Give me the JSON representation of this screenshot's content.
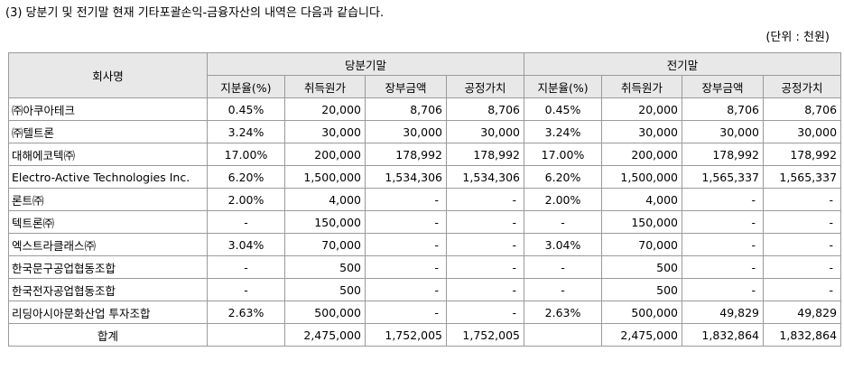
{
  "title": "(3) 당분기 및 전기말 현재 기타포괄손익-금융자산의 내역은 다음과 같습니다.",
  "unit": "(단위 : 천원)",
  "headers": {
    "company": "회사명",
    "current": "당분기말",
    "prior": "전기말",
    "cols": [
      "지분율(%)",
      "취득원가",
      "장부금액",
      "공정가치",
      "지분율(%)",
      "취득원가",
      "장부금액",
      "공정가치"
    ]
  },
  "rows": [
    {
      "name": "㈜아쿠아테크",
      "cells": [
        "0.45%",
        "20,000",
        "8,706",
        "8,706",
        "0.45%",
        "20,000",
        "8,706",
        "8,706"
      ]
    },
    {
      "name": "㈜텔트론",
      "cells": [
        "3.24%",
        "30,000",
        "30,000",
        "30,000",
        "3.24%",
        "30,000",
        "30,000",
        "30,000"
      ]
    },
    {
      "name": "대해에코텍㈜",
      "cells": [
        "17.00%",
        "200,000",
        "178,992",
        "178,992",
        "17.00%",
        "200,000",
        "178,992",
        "178,992"
      ]
    },
    {
      "name": "Electro-Active Technologies Inc.",
      "cells": [
        "6.20%",
        "1,500,000",
        "1,534,306",
        "1,534,306",
        "6.20%",
        "1,500,000",
        "1,565,337",
        "1,565,337"
      ]
    },
    {
      "name": "론트㈜",
      "cells": [
        "2.00%",
        "4,000",
        "-",
        "-",
        "2.00%",
        "4,000",
        "-",
        "-"
      ]
    },
    {
      "name": "텍트론㈜",
      "cells": [
        "-",
        "150,000",
        "-",
        "-",
        "-",
        "150,000",
        "-",
        "-"
      ]
    },
    {
      "name": "엑스트라클래스㈜",
      "cells": [
        "3.04%",
        "70,000",
        "-",
        "-",
        "3.04%",
        "70,000",
        "-",
        "-"
      ]
    },
    {
      "name": "한국문구공업협동조합",
      "cells": [
        "-",
        "500",
        "-",
        "-",
        "-",
        "500",
        "-",
        "-"
      ]
    },
    {
      "name": "한국전자공업협동조합",
      "cells": [
        "-",
        "500",
        "-",
        "-",
        "-",
        "500",
        "-",
        "-"
      ]
    },
    {
      "name": "리딩아시아문화산업 투자조합",
      "cells": [
        "2.63%",
        "500,000",
        "-",
        "-",
        "2.63%",
        "500,000",
        "49,829",
        "49,829"
      ]
    }
  ],
  "total": {
    "label": "합계",
    "cells": [
      "",
      "2,475,000",
      "1,752,005",
      "1,752,005",
      "",
      "2,475,000",
      "1,832,864",
      "1,832,864"
    ]
  }
}
